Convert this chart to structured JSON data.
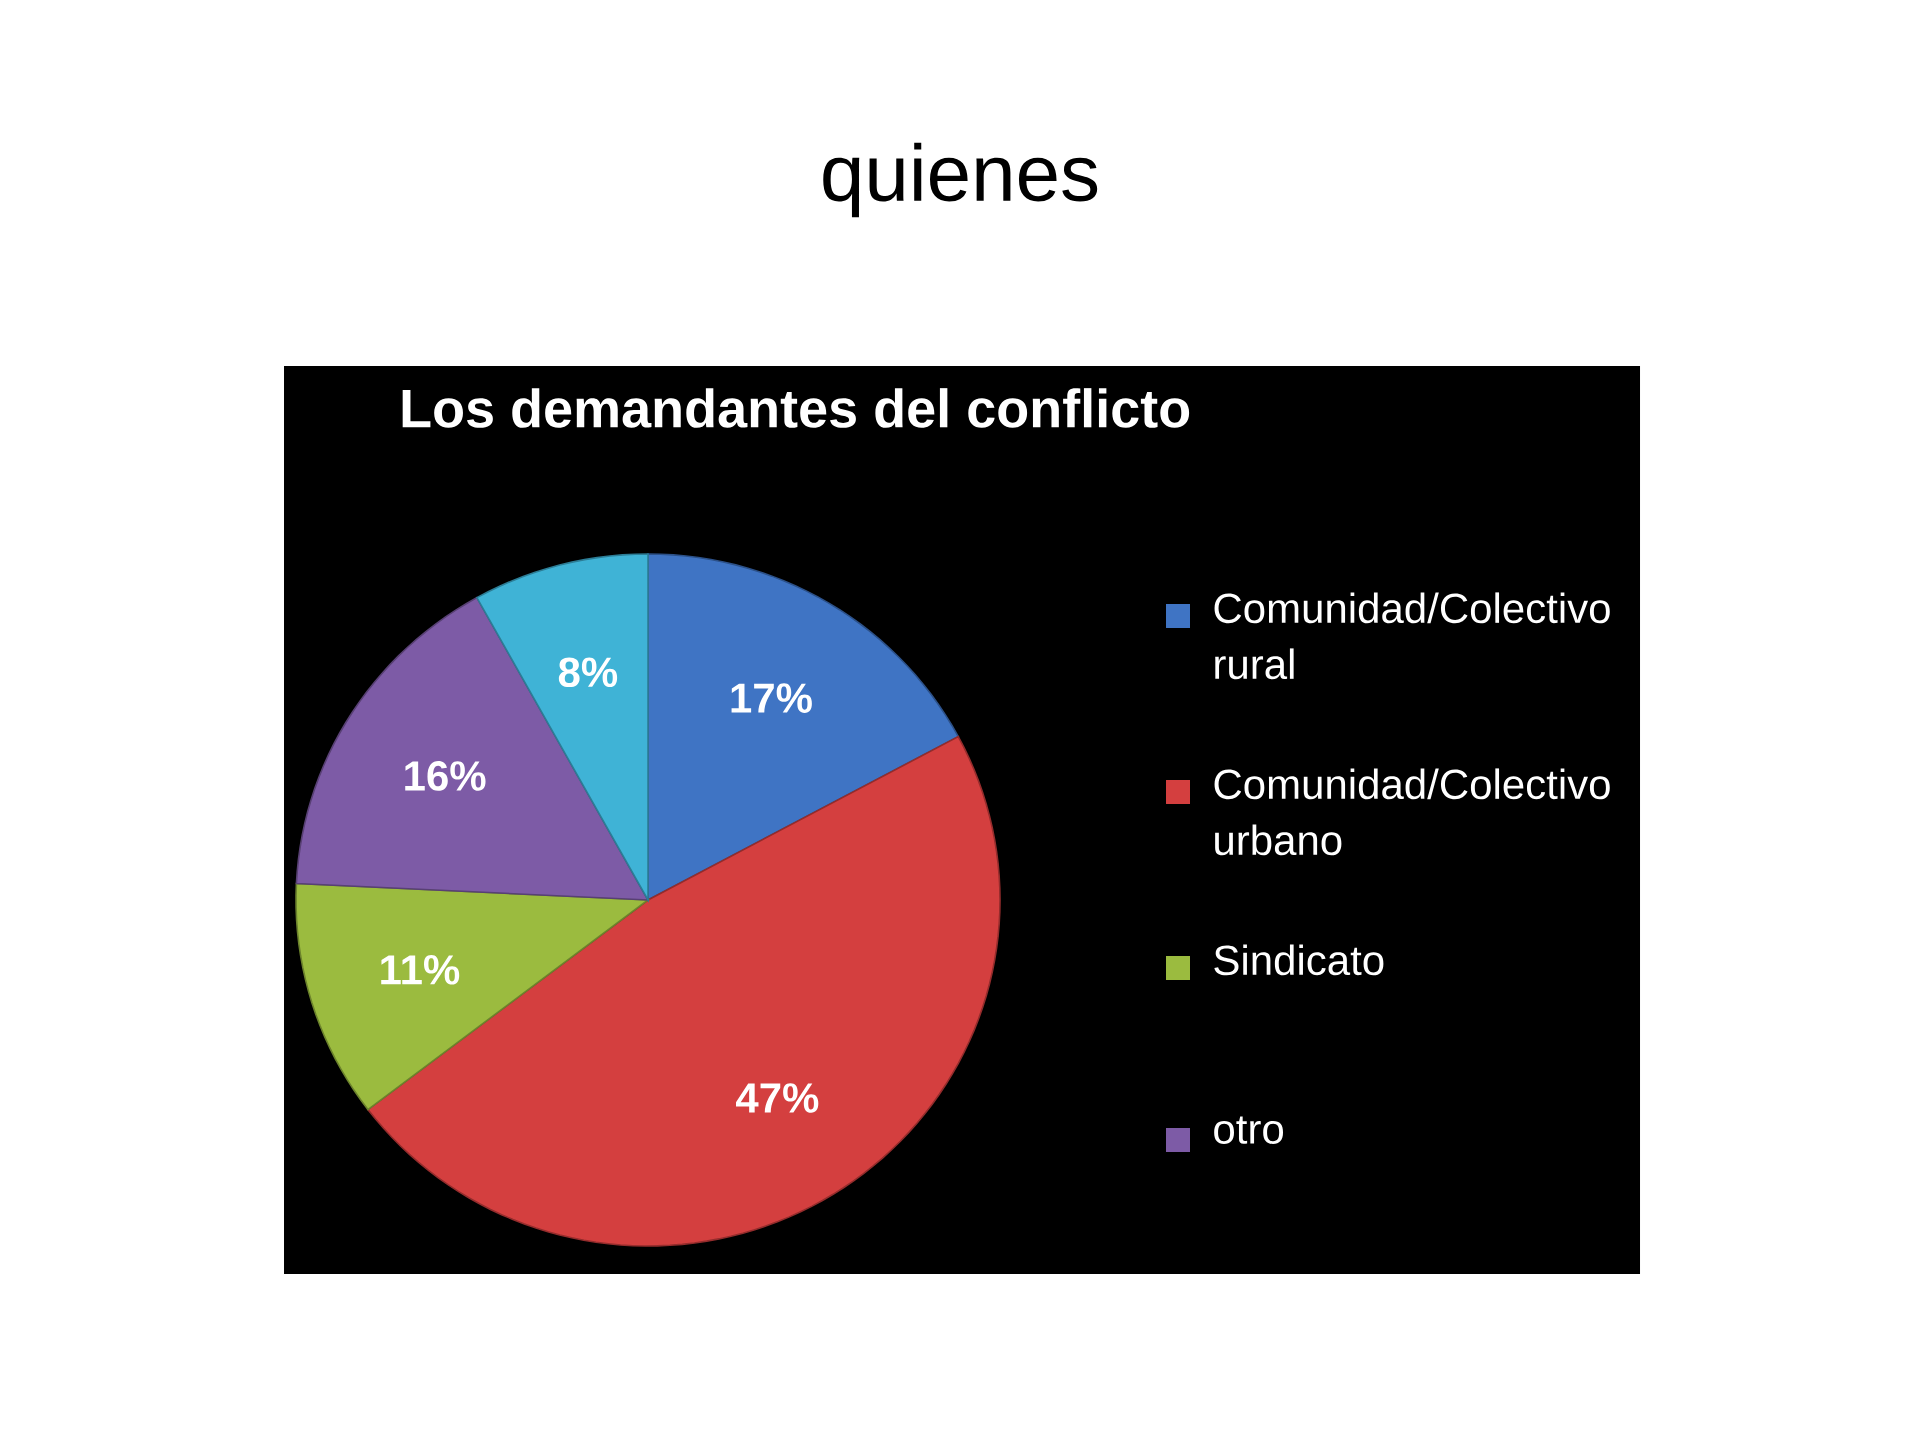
{
  "chart_data": {
    "type": "pie",
    "title": "quienes",
    "subtitle": "Los demandantes del conflicto",
    "categories": [
      "Comunidad/Colectivo rural",
      "Comunidad/Colectivo urbano",
      "Sindicato",
      "otro",
      null
    ],
    "values": [
      17,
      47,
      11,
      16,
      8
    ],
    "value_labels": [
      "17%",
      "47%",
      "11%",
      "16%",
      "8%"
    ],
    "colors": [
      "#3f74c4",
      "#d43f3f",
      "#9bbb3f",
      "#7d5ba6",
      "#3fb3d6"
    ],
    "legend": "right"
  }
}
